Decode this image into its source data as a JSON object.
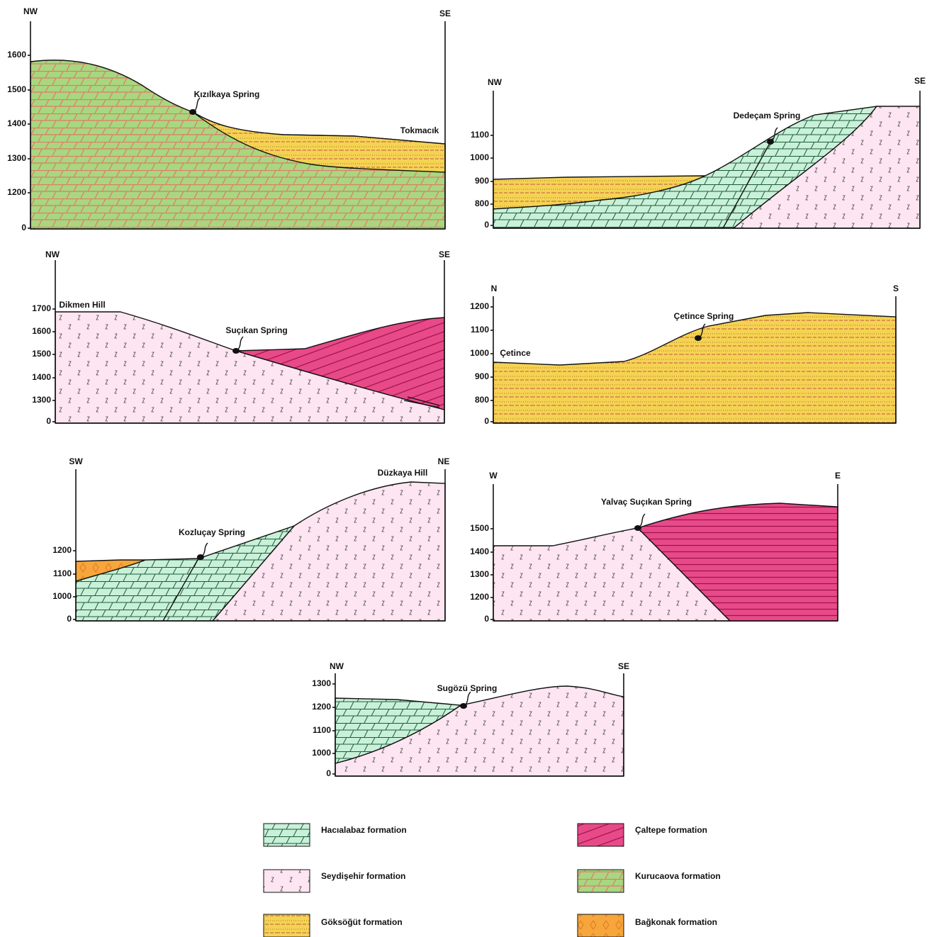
{
  "sections": [
    {
      "left": "NW",
      "right": "SE",
      "ticks": [
        1600,
        1500,
        1400,
        1300,
        1200,
        0
      ],
      "labels": [
        "Kızılkaya Spring",
        "Tokmacık"
      ]
    },
    {
      "left": "NW",
      "right": "SE",
      "ticks": [
        1100,
        1000,
        900,
        800,
        0
      ],
      "labels": [
        "Dedeçam Spring"
      ]
    },
    {
      "left": "NW",
      "right": "SE",
      "ticks": [
        1700,
        1600,
        1500,
        1400,
        1300,
        0
      ],
      "labels": [
        "Dikmen Hill",
        "Suçıkan Spring"
      ]
    },
    {
      "left": "N",
      "right": "S",
      "ticks": [
        1200,
        1100,
        1000,
        900,
        800,
        0
      ],
      "labels": [
        "Çetince",
        "Çetince Spring"
      ]
    },
    {
      "left": "SW",
      "right": "NE",
      "ticks": [
        1200,
        1100,
        1000,
        0
      ],
      "labels": [
        "Düzkaya Hill",
        "Kozluçay Spring"
      ]
    },
    {
      "left": "W",
      "right": "E",
      "ticks": [
        1500,
        1400,
        1300,
        1200,
        0
      ],
      "labels": [
        "Yalvaç Suçıkan Spring"
      ]
    },
    {
      "left": "NW",
      "right": "SE",
      "ticks": [
        1300,
        1200,
        1100,
        1000,
        0
      ],
      "labels": [
        "Sugözü Spring"
      ]
    }
  ],
  "legend": [
    "Hacıalabaz formation",
    "Çaltepe formation",
    "Seydişehir formation",
    "Kurucaova formation",
    "Göksöğüt formation",
    "Bağkonak formation"
  ]
}
